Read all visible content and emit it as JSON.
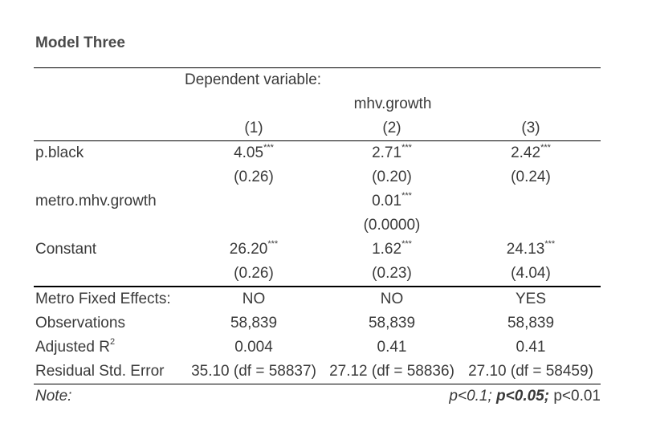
{
  "title": "Model Three",
  "header": {
    "dependent_variable_label": "Dependent variable:",
    "dependent_variable": "mhv.growth",
    "columns": [
      "(1)",
      "(2)",
      "(3)"
    ]
  },
  "coefficients": [
    {
      "name": "p.black",
      "estimates": [
        "4.05",
        "2.71",
        "2.42"
      ],
      "stars": [
        "***",
        "***",
        "***"
      ],
      "se": [
        "(0.26)",
        "(0.20)",
        "(0.24)"
      ]
    },
    {
      "name": "metro.mhv.growth",
      "estimates": [
        "",
        "0.01",
        ""
      ],
      "stars": [
        "",
        "***",
        ""
      ],
      "se": [
        "",
        "(0.0000)",
        ""
      ]
    },
    {
      "name": "Constant",
      "estimates": [
        "26.20",
        "1.62",
        "24.13"
      ],
      "stars": [
        "***",
        "***",
        "***"
      ],
      "se": [
        "(0.26)",
        "(0.23)",
        "(4.04)"
      ]
    }
  ],
  "stats": [
    {
      "name": "Metro Fixed Effects:",
      "values": [
        "NO",
        "NO",
        "YES"
      ]
    },
    {
      "name": "Observations",
      "values": [
        "58,839",
        "58,839",
        "58,839"
      ]
    },
    {
      "name": "Adjusted R",
      "sup": "2",
      "values": [
        "0.004",
        "0.41",
        "0.41"
      ]
    },
    {
      "name": "Residual Std. Error",
      "values": [
        "35.10 (df = 58837)",
        "27.12 (df = 58836)",
        "27.10 (df = 58459)"
      ]
    }
  ],
  "note": {
    "label": "Note:",
    "p1": "p<0.1;",
    "p2": "p<0.05;",
    "p3": "p<0.01"
  }
}
